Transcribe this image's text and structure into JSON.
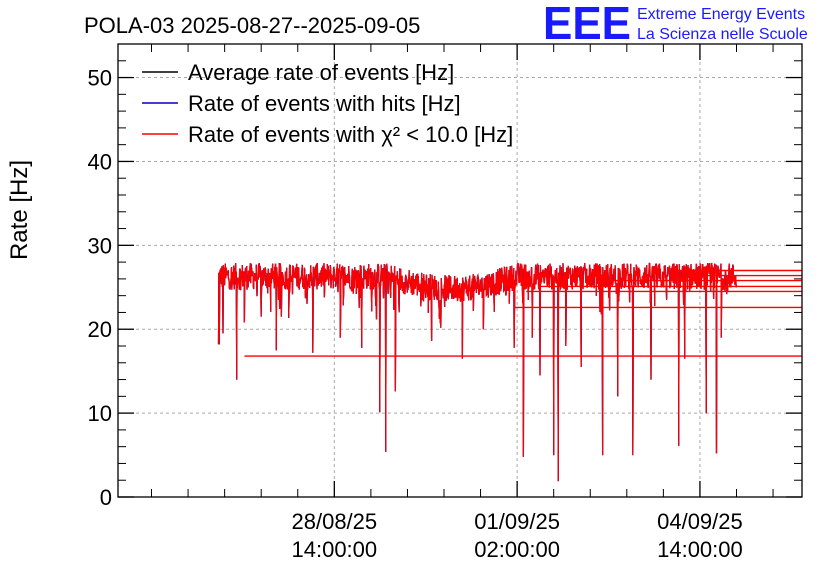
{
  "logo": {
    "mark": "EEE",
    "line1": "Extreme Energy Events",
    "line2": "La Scienza nelle Scuole",
    "color": "#1a1aff"
  },
  "chart_data": {
    "type": "line",
    "title": "POLA-03 2025-08-27--2025-09-05",
    "ylabel": "Rate [Hz]",
    "xlabel": "",
    "ylim": [
      0,
      54
    ],
    "yticks": [
      0,
      10,
      20,
      30,
      40,
      50
    ],
    "xlim_hours": [
      -33.0,
      191.5
    ],
    "xticks": [
      {
        "hours": 38,
        "date": "28/08/25",
        "time": "14:00:00"
      },
      {
        "hours": 98,
        "date": "01/09/25",
        "time": "02:00:00"
      },
      {
        "hours": 158,
        "date": "04/09/25",
        "time": "14:00:00"
      }
    ],
    "data_range_hours": [
      0,
      170
    ],
    "grid": true,
    "legend_position": "top-left",
    "series": [
      {
        "name": "Average rate of events [Hz]",
        "color": "#000000",
        "mean": 26.3,
        "min": 1.9,
        "max": 29.3
      },
      {
        "name": "Rate of events with hits [Hz]",
        "color": "#0000cc",
        "mean": 26.3,
        "min": 1.9,
        "max": 29.3
      },
      {
        "name": "Rate of events with χ² < 10.0 [Hz]",
        "color": "#ff0000",
        "mean": 26.3,
        "min": 1.9,
        "max": 29.3,
        "dips": [
          {
            "hours": 0.2,
            "value": 18.2
          },
          {
            "hours": 1.5,
            "value": 19.5
          },
          {
            "hours": 6.0,
            "value": 14.0
          },
          {
            "hours": 8.5,
            "value": 20.8
          },
          {
            "hours": 14.0,
            "value": 21.5
          },
          {
            "hours": 19.0,
            "value": 17.5
          },
          {
            "hours": 31.0,
            "value": 17.2
          },
          {
            "hours": 40.0,
            "value": 19.0
          },
          {
            "hours": 47.0,
            "value": 17.8
          },
          {
            "hours": 53.0,
            "value": 10.1
          },
          {
            "hours": 54.9,
            "value": 5.4
          },
          {
            "hours": 58.0,
            "value": 12.6
          },
          {
            "hours": 70.0,
            "value": 18.6
          },
          {
            "hours": 80.0,
            "value": 16.5
          },
          {
            "hours": 87.0,
            "value": 20.0
          },
          {
            "hours": 97.0,
            "value": 17.8
          },
          {
            "hours": 100.0,
            "value": 4.8
          },
          {
            "hours": 103.0,
            "value": 19.0
          },
          {
            "hours": 105.5,
            "value": 14.5
          },
          {
            "hours": 110.0,
            "value": 5.0
          },
          {
            "hours": 111.5,
            "value": 1.9
          },
          {
            "hours": 114.0,
            "value": 18.0
          },
          {
            "hours": 119.0,
            "value": 15.5
          },
          {
            "hours": 126.0,
            "value": 5.0
          },
          {
            "hours": 131.0,
            "value": 12.0
          },
          {
            "hours": 136.0,
            "value": 5.0
          },
          {
            "hours": 142.0,
            "value": 14.0
          },
          {
            "hours": 151.0,
            "value": 6.1
          },
          {
            "hours": 153.0,
            "value": 16.5
          },
          {
            "hours": 160.0,
            "value": 10.0
          },
          {
            "hours": 163.5,
            "value": 5.2
          },
          {
            "hours": 165.0,
            "value": 19.0
          }
        ],
        "flat_segments": [
          {
            "from_hours": 8.5,
            "to_hours": 191.5,
            "value": 16.8
          },
          {
            "from_hours": 97.0,
            "to_hours": 191.5,
            "value": 22.6
          },
          {
            "from_hours": 101.0,
            "to_hours": 191.5,
            "value": 24.5
          },
          {
            "from_hours": 105.5,
            "to_hours": 191.5,
            "value": 25.1
          },
          {
            "from_hours": 128.0,
            "to_hours": 191.5,
            "value": 25.8
          },
          {
            "from_hours": 148.0,
            "to_hours": 191.5,
            "value": 26.4
          },
          {
            "from_hours": 150.0,
            "to_hours": 191.5,
            "value": 27.0
          }
        ]
      }
    ]
  }
}
